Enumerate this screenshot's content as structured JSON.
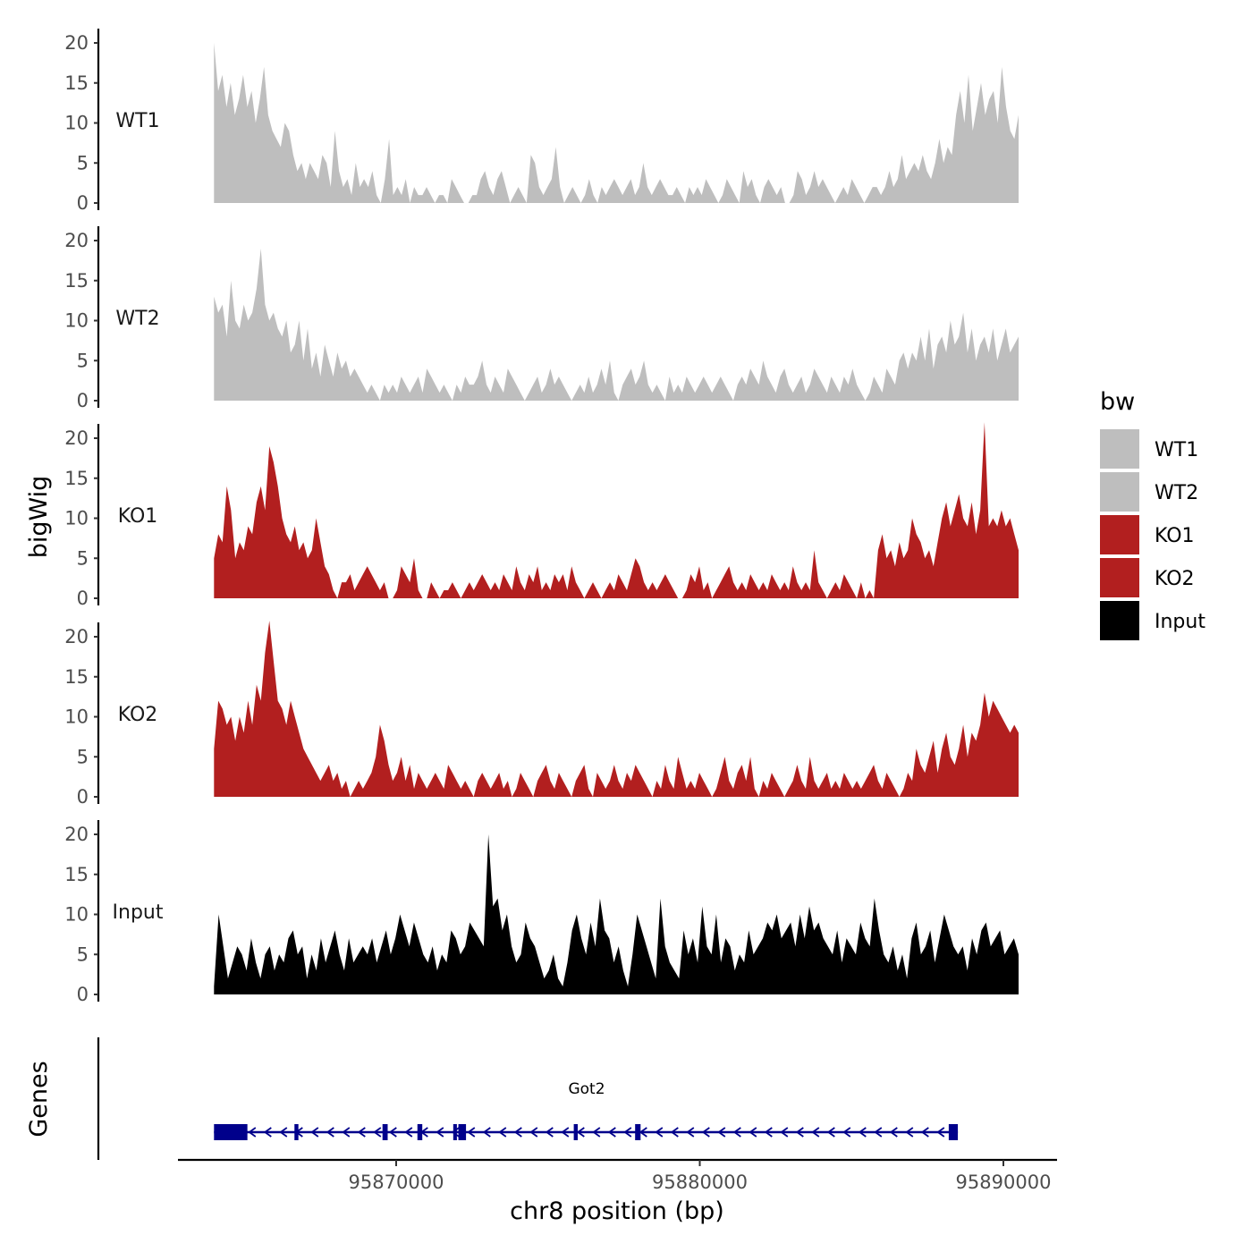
{
  "chart_data": {
    "type": "area",
    "ylabel": "bigWig",
    "xlabel": "chr8 position (bp)",
    "x_range": [
      95864000,
      95890500
    ],
    "ylim": [
      0,
      23
    ],
    "y_ticks": [
      0,
      5,
      10,
      15,
      20
    ],
    "x_ticks": [
      95870000,
      95880000,
      95890000
    ],
    "x_tick_labels": [
      "95870000",
      "95880000",
      "95890000"
    ],
    "legend": {
      "title": "bw",
      "entries": [
        {
          "label": "WT1",
          "color": "#bebebe"
        },
        {
          "label": "WT2",
          "color": "#bebebe"
        },
        {
          "label": "KO1",
          "color": "#b21f1f"
        },
        {
          "label": "KO2",
          "color": "#b21f1f"
        },
        {
          "label": "Input",
          "color": "#000000"
        }
      ]
    },
    "tracks": [
      {
        "name": "WT1",
        "color": "#bebebe",
        "x_start": 95864000,
        "x_end": 95890500,
        "values": [
          20,
          14,
          16,
          12,
          15,
          11,
          13,
          16,
          12,
          14,
          10,
          13,
          17,
          11,
          9,
          8,
          7,
          10,
          9,
          6,
          4,
          5,
          3,
          5,
          4,
          3,
          6,
          5,
          2,
          9,
          4,
          2,
          3,
          1,
          5,
          2,
          3,
          2,
          4,
          1,
          0,
          3,
          8,
          1,
          2,
          1,
          3,
          0,
          2,
          1,
          1,
          2,
          1,
          0,
          1,
          1,
          0,
          3,
          2,
          1,
          0,
          0,
          1,
          1,
          3,
          4,
          2,
          1,
          3,
          4,
          2,
          0,
          1,
          2,
          1,
          0,
          6,
          5,
          2,
          1,
          2,
          3,
          7,
          2,
          0,
          1,
          2,
          1,
          0,
          1,
          3,
          1,
          0,
          2,
          1,
          2,
          3,
          2,
          1,
          2,
          3,
          1,
          2,
          5,
          2,
          1,
          2,
          3,
          2,
          1,
          1,
          2,
          1,
          0,
          2,
          1,
          2,
          1,
          3,
          2,
          1,
          0,
          1,
          3,
          2,
          1,
          0,
          4,
          2,
          3,
          1,
          0,
          2,
          3,
          2,
          1,
          2,
          0,
          0,
          1,
          4,
          3,
          1,
          2,
          4,
          2,
          3,
          2,
          1,
          0,
          1,
          2,
          1,
          3,
          2,
          1,
          0,
          1,
          2,
          2,
          1,
          2,
          4,
          2,
          3,
          6,
          3,
          4,
          5,
          4,
          6,
          4,
          3,
          5,
          8,
          5,
          7,
          6,
          11,
          14,
          10,
          16,
          9,
          12,
          15,
          11,
          13,
          14,
          10,
          17,
          12,
          9,
          8,
          11
        ]
      },
      {
        "name": "WT2",
        "color": "#bebebe",
        "x_start": 95864000,
        "x_end": 95890500,
        "values": [
          13,
          11,
          12,
          8,
          15,
          10,
          9,
          12,
          10,
          11,
          14,
          19,
          12,
          10,
          11,
          9,
          8,
          10,
          6,
          7,
          10,
          5,
          9,
          4,
          6,
          3,
          7,
          5,
          3,
          6,
          4,
          5,
          3,
          4,
          3,
          2,
          1,
          2,
          1,
          0,
          2,
          1,
          2,
          1,
          3,
          2,
          1,
          2,
          3,
          1,
          4,
          3,
          2,
          1,
          2,
          1,
          0,
          2,
          1,
          3,
          2,
          2,
          3,
          5,
          2,
          1,
          3,
          2,
          1,
          4,
          3,
          2,
          1,
          0,
          1,
          2,
          3,
          1,
          2,
          4,
          2,
          3,
          2,
          1,
          0,
          1,
          2,
          1,
          3,
          1,
          2,
          4,
          2,
          5,
          1,
          0,
          2,
          3,
          4,
          2,
          3,
          5,
          2,
          1,
          2,
          1,
          0,
          3,
          1,
          2,
          1,
          3,
          2,
          1,
          2,
          3,
          2,
          1,
          2,
          3,
          2,
          1,
          0,
          2,
          3,
          2,
          4,
          3,
          2,
          5,
          3,
          2,
          1,
          3,
          4,
          2,
          1,
          2,
          3,
          1,
          2,
          4,
          3,
          2,
          1,
          3,
          2,
          1,
          3,
          2,
          4,
          2,
          1,
          0,
          1,
          3,
          2,
          1,
          4,
          3,
          2,
          5,
          6,
          4,
          6,
          5,
          8,
          5,
          9,
          4,
          7,
          8,
          6,
          10,
          7,
          8,
          11,
          6,
          9,
          5,
          7,
          8,
          6,
          9,
          5,
          7,
          9,
          6,
          7,
          8
        ]
      },
      {
        "name": "KO1",
        "color": "#b21f1f",
        "x_start": 95864000,
        "x_end": 95890500,
        "values": [
          5,
          8,
          7,
          14,
          11,
          5,
          7,
          6,
          9,
          8,
          12,
          14,
          11,
          19,
          17,
          14,
          10,
          8,
          7,
          9,
          6,
          7,
          5,
          6,
          10,
          7,
          4,
          3,
          1,
          0,
          2,
          2,
          3,
          1,
          2,
          3,
          4,
          3,
          2,
          1,
          2,
          0,
          0,
          1,
          4,
          3,
          2,
          5,
          1,
          0,
          0,
          2,
          1,
          0,
          1,
          1,
          2,
          1,
          0,
          1,
          2,
          1,
          2,
          3,
          2,
          1,
          2,
          1,
          3,
          2,
          1,
          4,
          2,
          1,
          3,
          2,
          4,
          1,
          2,
          1,
          3,
          2,
          3,
          1,
          4,
          2,
          1,
          0,
          1,
          2,
          1,
          0,
          1,
          2,
          1,
          3,
          2,
          1,
          3,
          5,
          4,
          2,
          1,
          2,
          1,
          2,
          3,
          2,
          1,
          0,
          0,
          1,
          3,
          2,
          4,
          1,
          2,
          0,
          1,
          2,
          3,
          4,
          2,
          1,
          2,
          1,
          3,
          2,
          1,
          2,
          1,
          3,
          2,
          1,
          2,
          1,
          4,
          2,
          1,
          2,
          1,
          6,
          2,
          1,
          0,
          1,
          2,
          1,
          3,
          2,
          1,
          0,
          2,
          0,
          1,
          0,
          6,
          8,
          5,
          6,
          4,
          7,
          5,
          6,
          10,
          8,
          7,
          5,
          6,
          4,
          7,
          10,
          12,
          9,
          11,
          13,
          10,
          9,
          12,
          8,
          11,
          22,
          9,
          10,
          9,
          11,
          9,
          10,
          8,
          6
        ]
      },
      {
        "name": "KO2",
        "color": "#b21f1f",
        "x_start": 95864000,
        "x_end": 95890500,
        "values": [
          6,
          12,
          11,
          9,
          10,
          7,
          10,
          8,
          12,
          9,
          14,
          12,
          18,
          22,
          17,
          12,
          11,
          9,
          12,
          10,
          8,
          6,
          5,
          4,
          3,
          2,
          3,
          4,
          2,
          3,
          1,
          2,
          0,
          1,
          2,
          1,
          2,
          3,
          5,
          9,
          7,
          4,
          2,
          3,
          5,
          2,
          4,
          1,
          3,
          2,
          1,
          2,
          3,
          2,
          1,
          4,
          3,
          2,
          1,
          2,
          1,
          0,
          2,
          3,
          2,
          1,
          2,
          3,
          1,
          2,
          0,
          1,
          3,
          2,
          1,
          0,
          2,
          3,
          4,
          2,
          1,
          3,
          2,
          1,
          0,
          2,
          3,
          4,
          1,
          0,
          3,
          2,
          1,
          2,
          4,
          2,
          1,
          3,
          2,
          4,
          3,
          2,
          1,
          0,
          2,
          1,
          4,
          2,
          1,
          5,
          3,
          1,
          2,
          1,
          3,
          2,
          1,
          0,
          1,
          3,
          5,
          2,
          1,
          3,
          4,
          2,
          5,
          1,
          0,
          2,
          1,
          3,
          2,
          1,
          0,
          1,
          2,
          4,
          2,
          1,
          5,
          2,
          1,
          2,
          3,
          1,
          2,
          1,
          3,
          2,
          1,
          2,
          1,
          2,
          3,
          4,
          2,
          1,
          3,
          2,
          1,
          0,
          1,
          3,
          2,
          6,
          4,
          3,
          5,
          7,
          3,
          6,
          8,
          5,
          4,
          6,
          9,
          5,
          8,
          7,
          9,
          13,
          10,
          12,
          11,
          10,
          9,
          8,
          9,
          8
        ]
      },
      {
        "name": "Input",
        "color": "#000000",
        "x_start": 95864000,
        "x_end": 95890500,
        "values": [
          1,
          10,
          6,
          2,
          4,
          6,
          5,
          3,
          7,
          4,
          2,
          5,
          6,
          3,
          5,
          4,
          7,
          8,
          5,
          6,
          2,
          5,
          3,
          7,
          4,
          6,
          8,
          5,
          3,
          7,
          4,
          5,
          6,
          5,
          7,
          4,
          6,
          8,
          5,
          7,
          10,
          8,
          6,
          9,
          7,
          5,
          4,
          6,
          3,
          5,
          4,
          8,
          7,
          5,
          6,
          9,
          8,
          7,
          6,
          20,
          11,
          12,
          8,
          10,
          6,
          4,
          5,
          9,
          7,
          6,
          4,
          2,
          3,
          5,
          2,
          1,
          4,
          8,
          10,
          7,
          5,
          9,
          6,
          12,
          8,
          7,
          4,
          6,
          3,
          1,
          5,
          10,
          8,
          6,
          4,
          2,
          12,
          6,
          4,
          3,
          2,
          8,
          5,
          7,
          4,
          11,
          6,
          5,
          10,
          4,
          7,
          6,
          3,
          5,
          4,
          8,
          5,
          6,
          7,
          9,
          8,
          10,
          7,
          8,
          9,
          6,
          10,
          7,
          11,
          8,
          9,
          7,
          6,
          5,
          8,
          4,
          7,
          6,
          5,
          9,
          7,
          6,
          12,
          8,
          5,
          4,
          6,
          3,
          5,
          2,
          7,
          9,
          5,
          6,
          8,
          4,
          7,
          10,
          8,
          6,
          5,
          6,
          3,
          7,
          5,
          8,
          9,
          6,
          7,
          8,
          5,
          6,
          7,
          5
        ]
      }
    ],
    "gene_track": {
      "title": "Genes",
      "gene_name": "Got2",
      "strand": "-",
      "gene_start": 95864000,
      "gene_end": 95888500,
      "exons": [
        {
          "start": 95864000,
          "end": 95865100
        },
        {
          "start": 95866650,
          "end": 95866780
        },
        {
          "start": 95869550,
          "end": 95869720
        },
        {
          "start": 95870700,
          "end": 95870860
        },
        {
          "start": 95871880,
          "end": 95872000
        },
        {
          "start": 95872050,
          "end": 95872300
        },
        {
          "start": 95875850,
          "end": 95875980
        },
        {
          "start": 95877870,
          "end": 95878050
        },
        {
          "start": 95888200,
          "end": 95888500
        }
      ]
    }
  }
}
